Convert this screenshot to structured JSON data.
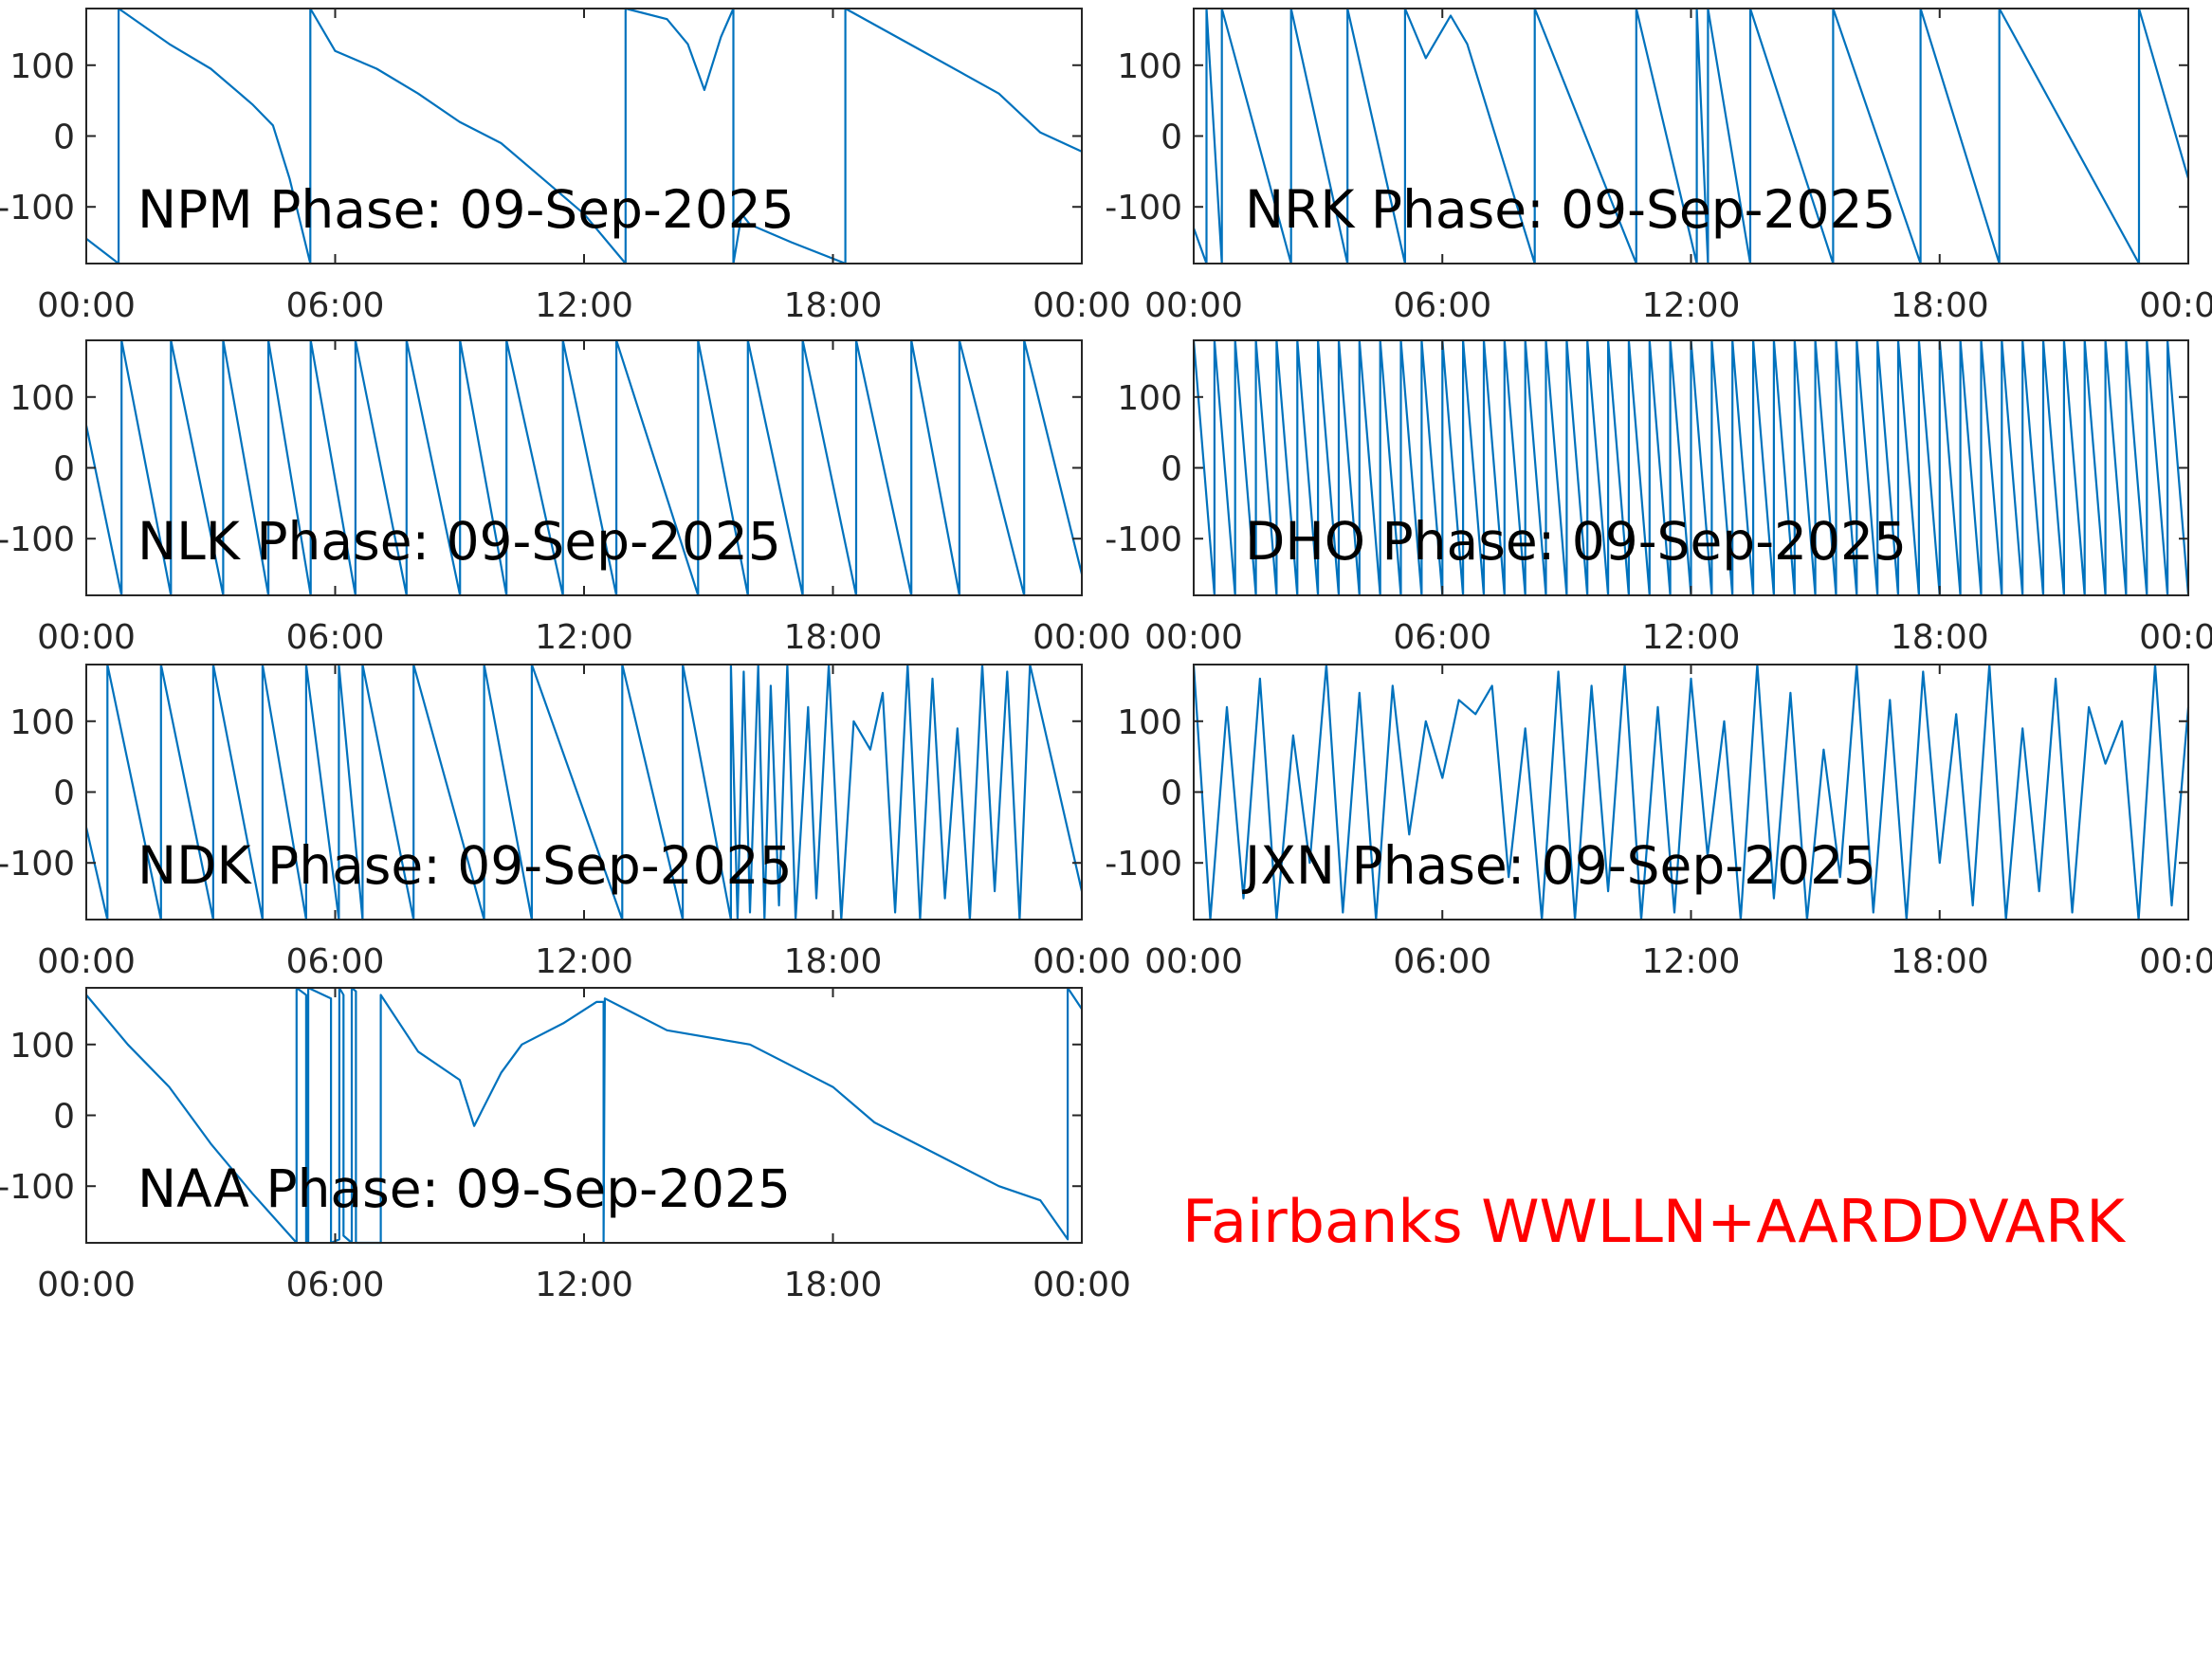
{
  "caption": "Fairbanks WWLLN+AARDDVARK",
  "chart_data": [
    {
      "type": "line",
      "title": "NPM Phase: 09-Sep-2025",
      "color": "#0072bd",
      "xlim": [
        0,
        24
      ],
      "ylim": [
        -180,
        180
      ],
      "xticks": [
        {
          "value": 0,
          "label": "00:00"
        },
        {
          "value": 6,
          "label": "06:00"
        },
        {
          "value": 12,
          "label": "12:00"
        },
        {
          "value": 18,
          "label": "18:00"
        },
        {
          "value": 24,
          "label": "00:00"
        }
      ],
      "yticks": [
        -100,
        0,
        100
      ],
      "x": [
        0,
        0.78,
        0.78,
        2,
        3,
        4,
        4.5,
        4.9,
        5.4,
        5.4,
        6,
        7,
        8,
        9,
        10,
        11,
        12,
        13,
        13,
        14,
        14.5,
        14.9,
        15.3,
        15.6,
        15.6,
        15.8,
        16,
        17,
        18.3,
        18.3,
        20,
        22,
        23,
        24
      ],
      "values": [
        -145,
        -180,
        180,
        130,
        95,
        45,
        15,
        -60,
        -180,
        180,
        120,
        95,
        60,
        20,
        -10,
        -60,
        -110,
        -180,
        180,
        165,
        130,
        65,
        140,
        180,
        -180,
        -110,
        -125,
        -150,
        -180,
        180,
        125,
        60,
        5,
        -22
      ]
    },
    {
      "type": "line",
      "title": "NRK Phase: 09-Sep-2025",
      "color": "#0072bd",
      "xlim": [
        0,
        24
      ],
      "ylim": [
        -180,
        180
      ],
      "xticks": [
        {
          "value": 0,
          "label": "00:00"
        },
        {
          "value": 6,
          "label": "06:00"
        },
        {
          "value": 12,
          "label": "12:00"
        },
        {
          "value": 18,
          "label": "18:00"
        },
        {
          "value": 24,
          "label": "00:00"
        }
      ],
      "yticks": [
        -100,
        0,
        100
      ],
      "x": [
        0,
        0.31,
        0.31,
        0.68,
        0.68,
        2.35,
        2.35,
        3.71,
        3.71,
        5.1,
        5.1,
        5.6,
        6.2,
        6.6,
        8.23,
        8.23,
        10.68,
        10.68,
        12.14,
        12.14,
        12.41,
        12.41,
        13.43,
        13.43,
        15.43,
        15.43,
        17.54,
        17.54,
        19.44,
        19.44,
        22.81,
        22.81,
        24
      ],
      "values": [
        -130,
        -180,
        180,
        -180,
        180,
        -180,
        180,
        -180,
        180,
        -180,
        180,
        110,
        170,
        130,
        -180,
        180,
        -180,
        180,
        -180,
        180,
        -180,
        180,
        -180,
        180,
        -180,
        180,
        -180,
        180,
        -180,
        180,
        -180,
        180,
        -60
      ]
    },
    {
      "type": "line",
      "title": "NLK Phase: 09-Sep-2025",
      "color": "#0072bd",
      "xlim": [
        0,
        24
      ],
      "ylim": [
        -180,
        180
      ],
      "xticks": [
        {
          "value": 0,
          "label": "00:00"
        },
        {
          "value": 6,
          "label": "06:00"
        },
        {
          "value": 12,
          "label": "12:00"
        },
        {
          "value": 18,
          "label": "18:00"
        },
        {
          "value": 24,
          "label": "00:00"
        }
      ],
      "yticks": [
        -100,
        0,
        100
      ],
      "x": [
        0,
        0.85,
        0.85,
        2.04,
        2.04,
        3.3,
        3.3,
        4.39,
        4.39,
        5.41,
        5.41,
        6.49,
        6.49,
        7.72,
        7.72,
        9.01,
        9.01,
        10.13,
        10.13,
        11.49,
        11.49,
        12.78,
        12.78,
        14.75,
        14.75,
        15.95,
        15.95,
        17.27,
        17.27,
        18.56,
        18.56,
        19.89,
        19.89,
        21.05,
        21.05,
        22.61,
        22.61,
        24
      ],
      "values": [
        60,
        -180,
        180,
        -180,
        180,
        -180,
        180,
        -180,
        180,
        -180,
        180,
        -180,
        180,
        -180,
        180,
        -180,
        180,
        -180,
        180,
        -180,
        180,
        -180,
        180,
        -180,
        180,
        -180,
        180,
        -180,
        180,
        -180,
        180,
        -180,
        180,
        -180,
        180,
        -180,
        180,
        -150
      ]
    },
    {
      "type": "line",
      "title": "DHO Phase: 09-Sep-2025",
      "color": "#0072bd",
      "xlim": [
        0,
        24
      ],
      "ylim": [
        -180,
        180
      ],
      "xticks": [
        {
          "value": 0,
          "label": "00:00"
        },
        {
          "value": 6,
          "label": "06:00"
        },
        {
          "value": 12,
          "label": "12:00"
        },
        {
          "value": 18,
          "label": "18:00"
        },
        {
          "value": 24,
          "label": "00:00"
        }
      ],
      "yticks": [
        -100,
        0,
        100
      ],
      "x": [
        0,
        0.5,
        0.5,
        1,
        1,
        1.5,
        1.5,
        2,
        2,
        2.5,
        2.5,
        3,
        3,
        3.5,
        3.5,
        4,
        4,
        4.5,
        4.5,
        5,
        5,
        5.5,
        5.5,
        6,
        6,
        6.5,
        6.5,
        7,
        7,
        7.5,
        7.5,
        8,
        8,
        8.5,
        8.5,
        9,
        9,
        9.5,
        9.5,
        10,
        10,
        10.5,
        10.5,
        11,
        11,
        11.5,
        11.5,
        12,
        12,
        12.5,
        12.5,
        13,
        13,
        13.5,
        13.5,
        14,
        14,
        14.5,
        14.5,
        15,
        15,
        15.5,
        15.5,
        16,
        16,
        16.5,
        16.5,
        17,
        17,
        17.5,
        17.5,
        18,
        18,
        18.5,
        18.5,
        19,
        19,
        19.5,
        19.5,
        20,
        20,
        20.5,
        20.5,
        21,
        21,
        21.5,
        21.5,
        22,
        22,
        22.5,
        22.5,
        23,
        23,
        23.5,
        23.5,
        24
      ],
      "values": [
        180,
        -180,
        180,
        -180,
        180,
        -180,
        180,
        -180,
        180,
        -180,
        180,
        -180,
        180,
        -180,
        180,
        -180,
        180,
        -180,
        180,
        -180,
        180,
        -180,
        180,
        -180,
        180,
        -180,
        180,
        -180,
        180,
        -180,
        180,
        -180,
        180,
        -180,
        180,
        -180,
        180,
        -180,
        180,
        -180,
        180,
        -180,
        180,
        -180,
        180,
        -180,
        180,
        -180,
        180,
        -180,
        180,
        -180,
        180,
        -180,
        180,
        -180,
        180,
        -180,
        180,
        -180,
        180,
        -180,
        180,
        -180,
        180,
        -180,
        180,
        -180,
        180,
        -180,
        180,
        -180,
        180,
        -180,
        180,
        -180,
        180,
        -180,
        180,
        -180,
        180,
        -180,
        180,
        -180,
        180,
        -180,
        180,
        -180,
        180,
        -180,
        180,
        -180,
        180,
        -180,
        180,
        -180
      ]
    },
    {
      "type": "line",
      "title": "NDK Phase: 09-Sep-2025",
      "color": "#0072bd",
      "xlim": [
        0,
        24
      ],
      "ylim": [
        -180,
        180
      ],
      "xticks": [
        {
          "value": 0,
          "label": "00:00"
        },
        {
          "value": 6,
          "label": "06:00"
        },
        {
          "value": 12,
          "label": "12:00"
        },
        {
          "value": 18,
          "label": "18:00"
        },
        {
          "value": 24,
          "label": "00:00"
        }
      ],
      "yticks": [
        -100,
        0,
        100
      ],
      "x": [
        0,
        0.51,
        0.51,
        1.8,
        1.8,
        3.06,
        3.06,
        4.25,
        4.25,
        5.3,
        5.3,
        6.09,
        6.09,
        6.66,
        6.66,
        7.89,
        7.89,
        9.59,
        9.59,
        10.74,
        10.74,
        12.92,
        12.92,
        14.38,
        14.38,
        15.54,
        15.54,
        15.7,
        15.85,
        16,
        16.2,
        16.35,
        16.5,
        16.7,
        16.9,
        17.1,
        17.4,
        17.6,
        17.9,
        18.2,
        18.5,
        18.9,
        19.2,
        19.5,
        19.8,
        20.1,
        20.4,
        20.7,
        21,
        21.3,
        21.6,
        21.9,
        22.2,
        22.5,
        22.75,
        24
      ],
      "values": [
        -50,
        -180,
        180,
        -180,
        180,
        -180,
        180,
        -180,
        180,
        -180,
        180,
        -180,
        180,
        -180,
        180,
        -180,
        180,
        -180,
        180,
        -180,
        180,
        -180,
        180,
        -180,
        180,
        -180,
        180,
        -180,
        170,
        -170,
        180,
        -180,
        150,
        -160,
        180,
        -180,
        120,
        -150,
        180,
        -180,
        100,
        60,
        140,
        -170,
        180,
        -180,
        160,
        -150,
        90,
        -180,
        180,
        -140,
        170,
        -180,
        180,
        -140
      ]
    },
    {
      "type": "line",
      "title": "JXN Phase: 09-Sep-2025",
      "color": "#0072bd",
      "xlim": [
        0,
        24
      ],
      "ylim": [
        -180,
        180
      ],
      "xticks": [
        {
          "value": 0,
          "label": "00:00"
        },
        {
          "value": 6,
          "label": "06:00"
        },
        {
          "value": 12,
          "label": "12:00"
        },
        {
          "value": 18,
          "label": "18:00"
        },
        {
          "value": 24,
          "label": "00:00"
        }
      ],
      "yticks": [
        -100,
        0,
        100
      ],
      "x": [
        0,
        0.4,
        0.8,
        1.2,
        1.6,
        2,
        2.4,
        2.8,
        3.2,
        3.6,
        4,
        4.4,
        4.8,
        5.2,
        5.6,
        6,
        6.4,
        6.8,
        7.2,
        7.6,
        8,
        8.4,
        8.8,
        9.2,
        9.6,
        10,
        10.4,
        10.8,
        11.2,
        11.6,
        12,
        12.4,
        12.8,
        13.2,
        13.6,
        14,
        14.4,
        14.8,
        15.2,
        15.6,
        16,
        16.4,
        16.8,
        17.2,
        17.6,
        18,
        18.4,
        18.8,
        19.2,
        19.6,
        20,
        20.4,
        20.8,
        21.2,
        21.6,
        22,
        22.4,
        22.8,
        23.2,
        23.6,
        24
      ],
      "values": [
        180,
        -180,
        120,
        -150,
        160,
        -180,
        80,
        -100,
        180,
        -170,
        140,
        -180,
        150,
        -60,
        100,
        20,
        130,
        110,
        150,
        -120,
        90,
        -180,
        170,
        -180,
        150,
        -140,
        180,
        -180,
        120,
        -170,
        160,
        -90,
        100,
        -180,
        180,
        -150,
        140,
        -180,
        60,
        -120,
        180,
        -170,
        130,
        -180,
        170,
        -100,
        110,
        -160,
        180,
        -180,
        90,
        -140,
        160,
        -170,
        120,
        40,
        100,
        -180,
        180,
        -160,
        120
      ]
    },
    {
      "type": "line",
      "title": "NAA Phase: 09-Sep-2025",
      "color": "#0072bd",
      "xlim": [
        0,
        24
      ],
      "ylim": [
        -180,
        180
      ],
      "xticks": [
        {
          "value": 0,
          "label": "00:00"
        },
        {
          "value": 6,
          "label": "06:00"
        },
        {
          "value": 12,
          "label": "12:00"
        },
        {
          "value": 18,
          "label": "18:00"
        },
        {
          "value": 24,
          "label": "00:00"
        }
      ],
      "yticks": [
        -100,
        0,
        100
      ],
      "x": [
        0,
        1,
        2,
        3,
        4,
        5.07,
        5.07,
        5.3,
        5.3,
        5.35,
        5.35,
        5.9,
        5.9,
        6.1,
        6.1,
        6.2,
        6.2,
        6.4,
        6.4,
        6.5,
        6.5,
        7.1,
        7.1,
        8,
        9,
        9.35,
        10,
        10.5,
        11.5,
        12.3,
        12.47,
        12.47,
        12.5,
        13,
        14,
        16,
        18,
        19,
        20,
        22,
        23,
        23.66,
        23.66,
        24
      ],
      "values": [
        170,
        100,
        40,
        -40,
        -110,
        -180,
        180,
        170,
        -180,
        -180,
        180,
        165,
        -180,
        -175,
        180,
        170,
        -170,
        -180,
        180,
        175,
        -180,
        -180,
        170,
        90,
        50,
        -15,
        60,
        100,
        130,
        160,
        160,
        -180,
        165,
        150,
        120,
        100,
        40,
        -10,
        -40,
        -100,
        -120,
        -175,
        180,
        150
      ]
    }
  ]
}
